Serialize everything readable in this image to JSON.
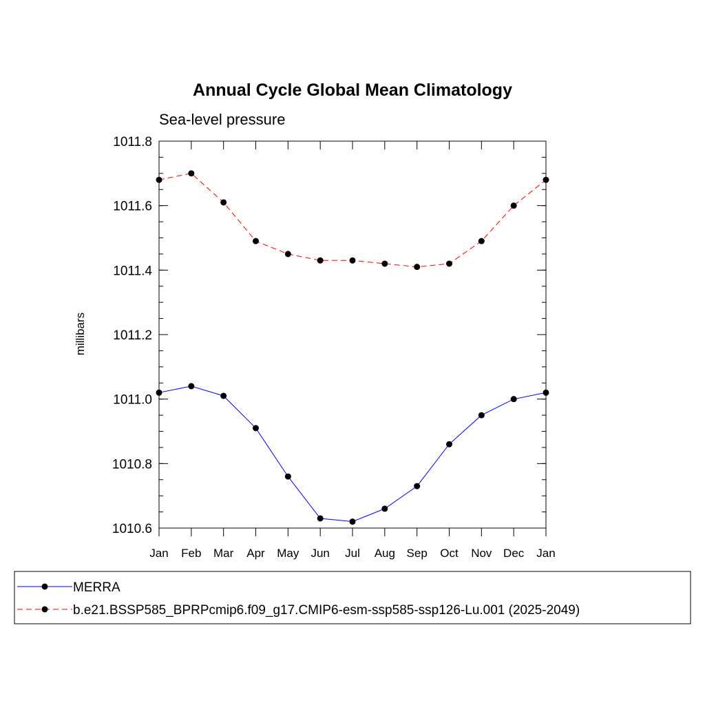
{
  "chart_data": {
    "type": "line",
    "title": "Annual Cycle Global Mean Climatology",
    "subtitle": "Sea-level pressure",
    "xlabel": "",
    "ylabel": "millibars",
    "categories": [
      "Jan",
      "Feb",
      "Mar",
      "Apr",
      "May",
      "Jun",
      "Jul",
      "Aug",
      "Sep",
      "Oct",
      "Nov",
      "Dec",
      "Jan"
    ],
    "ylim": [
      1010.6,
      1011.8
    ],
    "yticks": [
      1010.6,
      1010.8,
      1011.0,
      1011.2,
      1011.4,
      1011.6,
      1011.8
    ],
    "ytick_labels": [
      "1010.6",
      "1010.8",
      "1011.0",
      "1011.2",
      "1011.4",
      "1011.6",
      "1011.8"
    ],
    "grid": false,
    "legend_position": "bottom",
    "series": [
      {
        "name": "MERRA",
        "color": "#0000ff",
        "line_style": "solid",
        "marker": "filled-circle",
        "values": [
          1011.02,
          1011.04,
          1011.01,
          1010.91,
          1010.76,
          1010.63,
          1010.62,
          1010.66,
          1010.73,
          1010.86,
          1010.95,
          1011.0,
          1011.02
        ]
      },
      {
        "name": "b.e21.BSSP585_BPRPcmip6.f09_g17.CMIP6-esm-ssp585-ssp126-Lu.001 (2025-2049)",
        "color": "#ff0000",
        "line_style": "dashed",
        "marker": "filled-circle",
        "values": [
          1011.68,
          1011.7,
          1011.61,
          1011.49,
          1011.45,
          1011.43,
          1011.43,
          1011.42,
          1011.41,
          1011.42,
          1011.49,
          1011.6,
          1011.68
        ]
      }
    ]
  }
}
